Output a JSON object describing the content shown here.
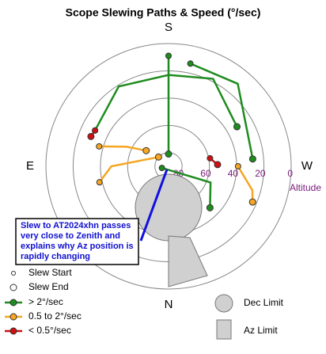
{
  "chart_data": {
    "type": "polar",
    "title": "Scope Slewing Paths & Speed (°/sec)",
    "directions": [
      "N",
      "E",
      "S",
      "W"
    ],
    "ylim": [
      0,
      90
    ],
    "yticks": [
      80,
      60,
      40,
      20,
      0
    ],
    "ylabel": "Altitude",
    "annotation": [
      "Slew to AT2024xhn passes",
      "very close to Zenith and",
      "explains why Az position is",
      "rapidly changing"
    ],
    "markers": [
      "Slew Start",
      "Slew End"
    ],
    "limits": [
      "Dec Limit",
      "Az Limit"
    ],
    "series": [
      {
        "name": "> 2°/sec",
        "color": "#1e8c1e",
        "paths": [
          {
            "az": [
              180,
              180,
              180
            ],
            "alt": [
              9,
              44,
              81
            ]
          },
          {
            "az": [
              116,
              148,
              180,
              207,
              240
            ],
            "alt": [
              30,
              21,
              23,
              18,
              32
            ]
          },
          {
            "az": [
              76,
              291,
              315
            ],
            "alt": [
              85,
              57,
              47
            ]
          },
          {
            "az": [
              192,
              220,
              265
            ],
            "alt": [
              13,
              11,
              28
            ]
          }
        ]
      },
      {
        "name": "0.5 to 2°/sec",
        "color": "#f5a623",
        "paths": [
          {
            "az": [
              106,
              115,
              125
            ],
            "alt": [
              37,
              56,
              70
            ]
          },
          {
            "az": [
              77,
              90,
              133
            ],
            "alt": [
              38,
              48,
              80
            ]
          },
          {
            "az": [
              270,
              286,
              293
            ],
            "alt": [
              39,
              26,
              23
            ]
          }
        ]
      },
      {
        "name": "< 0.5°/sec",
        "color": "#d01010",
        "paths": [
          {
            "az": [
              116,
              111
            ],
            "alt": [
              30,
              29
            ]
          },
          {
            "az": [
              259,
              268
            ],
            "alt": [
              59,
              54
            ]
          }
        ]
      }
    ]
  }
}
